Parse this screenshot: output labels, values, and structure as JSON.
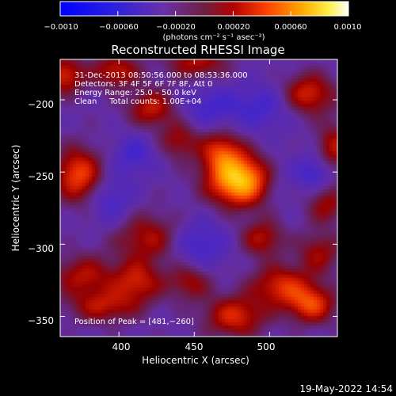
{
  "chart_data": {
    "type": "heatmap",
    "title": "Reconstructed RHESSI Image",
    "xlabel": "Heliocentric X (arcsec)",
    "ylabel": "Heliocentric Y (arcsec)",
    "xlim": [
      361,
      545
    ],
    "ylim": [
      -364,
      -172
    ],
    "xticks": [
      400,
      450,
      500
    ],
    "xtick_labels": [
      "400",
      "450",
      "500"
    ],
    "yticks": [
      -200,
      -250,
      -300,
      -350
    ],
    "ytick_labels": [
      "−200",
      "−250",
      "−300",
      "−350"
    ],
    "colorbar": {
      "range": [
        -0.001,
        0.001
      ],
      "ticks": [
        -0.001,
        -0.0006,
        -0.0002,
        0.0002,
        0.0006,
        0.001
      ],
      "tick_labels": [
        "−0.0010",
        "−0.00060",
        "−0.00020",
        "0.00020",
        "0.00060",
        "0.0010"
      ],
      "unit_label": "(photons cm⁻² s⁻¹ asec⁻²)",
      "colormap": "blue-purple-red-orange-yellow-white"
    },
    "annotations": {
      "time_range": "31‑Dec‑2013 08:50:56.000 to 08:53:36.000",
      "detectors": "Detectors: 3F 4F 5F 6F 7F 8F, Att 0",
      "energy_range": "Energy Range: 25.0 – 50.0 keV",
      "clean_counts": "Clean     Total counts: 1.00E+04",
      "peak_position": "Position of Peak = [481,−260]"
    },
    "peak": [
      481,
      -260
    ],
    "peak_value": 0.001,
    "blobs": [
      {
        "x": 481,
        "y": -256,
        "amp": 0.001,
        "sx": 15,
        "sy": 12
      },
      {
        "x": 468,
        "y": -236,
        "amp": 0.0005,
        "sx": 10,
        "sy": 10
      },
      {
        "x": 373,
        "y": -252,
        "amp": 0.0006,
        "sx": 11,
        "sy": 13
      },
      {
        "x": 364,
        "y": -183,
        "amp": 0.0005,
        "sx": 9,
        "sy": 9
      },
      {
        "x": 398,
        "y": -180,
        "amp": 0.00045,
        "sx": 11,
        "sy": 8
      },
      {
        "x": 422,
        "y": -206,
        "amp": 0.00045,
        "sx": 11,
        "sy": 9
      },
      {
        "x": 452,
        "y": -174,
        "amp": 0.0004,
        "sx": 14,
        "sy": 8
      },
      {
        "x": 440,
        "y": -228,
        "amp": 0.00035,
        "sx": 9,
        "sy": 9
      },
      {
        "x": 526,
        "y": -196,
        "amp": 0.0005,
        "sx": 12,
        "sy": 10
      },
      {
        "x": 543,
        "y": -233,
        "amp": 0.0004,
        "sx": 8,
        "sy": 12
      },
      {
        "x": 420,
        "y": -296,
        "amp": 0.0004,
        "sx": 16,
        "sy": 12
      },
      {
        "x": 376,
        "y": -322,
        "amp": 0.0004,
        "sx": 14,
        "sy": 10
      },
      {
        "x": 412,
        "y": -326,
        "amp": 0.00045,
        "sx": 12,
        "sy": 10
      },
      {
        "x": 390,
        "y": -343,
        "amp": 0.0004,
        "sx": 16,
        "sy": 8
      },
      {
        "x": 447,
        "y": -326,
        "amp": 0.00035,
        "sx": 10,
        "sy": 9
      },
      {
        "x": 477,
        "y": -350,
        "amp": 0.0005,
        "sx": 14,
        "sy": 10
      },
      {
        "x": 495,
        "y": -296,
        "amp": 0.0004,
        "sx": 10,
        "sy": 9
      },
      {
        "x": 508,
        "y": -329,
        "amp": 0.0005,
        "sx": 14,
        "sy": 10
      },
      {
        "x": 528,
        "y": -342,
        "amp": 0.00055,
        "sx": 11,
        "sy": 9
      },
      {
        "x": 533,
        "y": -306,
        "amp": 0.00035,
        "sx": 10,
        "sy": 10
      },
      {
        "x": 538,
        "y": -273,
        "amp": 0.00035,
        "sx": 9,
        "sy": 9
      },
      {
        "x": 503,
        "y": -256,
        "amp": -0.0002,
        "sx": 12,
        "sy": 12
      },
      {
        "x": 452,
        "y": -300,
        "amp": -0.0003,
        "sx": 14,
        "sy": 12
      },
      {
        "x": 460,
        "y": -205,
        "amp": -0.00025,
        "sx": 14,
        "sy": 10
      },
      {
        "x": 495,
        "y": -205,
        "amp": -0.00025,
        "sx": 14,
        "sy": 12
      },
      {
        "x": 395,
        "y": -270,
        "amp": -0.00025,
        "sx": 10,
        "sy": 12
      },
      {
        "x": 530,
        "y": -250,
        "amp": -0.0003,
        "sx": 8,
        "sy": 8
      },
      {
        "x": 410,
        "y": -238,
        "amp": -0.00025,
        "sx": 10,
        "sy": 10
      }
    ]
  },
  "footer": {
    "date": "19‑May‑2022 14:54"
  }
}
